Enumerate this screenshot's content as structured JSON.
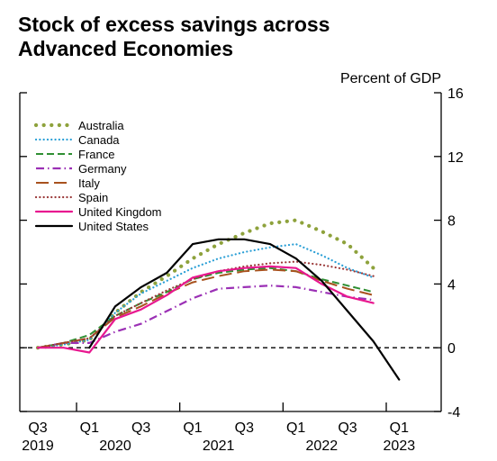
{
  "chart_data": {
    "type": "line",
    "title_lines": [
      "Stock of excess savings across",
      "Advanced Economies"
    ],
    "ylabel": "Percent of GDP",
    "xlabel": "",
    "ylim": [
      -4,
      16
    ],
    "yticks": [
      -4,
      0,
      4,
      8,
      12,
      16
    ],
    "xlim": [
      2019.5,
      2023.25
    ],
    "xticks": [
      {
        "x": 2019.5,
        "top": "Q3",
        "bottom": "2019"
      },
      {
        "x": 2020.0,
        "top": "Q1",
        "bottom": ""
      },
      {
        "x": 2020.5,
        "top": "Q3",
        "bottom": ""
      },
      {
        "x": 2021.0,
        "top": "Q1",
        "bottom": ""
      },
      {
        "x": 2021.5,
        "top": "Q3",
        "bottom": ""
      },
      {
        "x": 2022.0,
        "top": "Q1",
        "bottom": ""
      },
      {
        "x": 2022.5,
        "top": "Q3",
        "bottom": ""
      },
      {
        "x": 2023.0,
        "top": "Q1",
        "bottom": "2023"
      }
    ],
    "year_labels": [
      {
        "x": 2020.25,
        "label": "2020"
      },
      {
        "x": 2021.25,
        "label": "2021"
      },
      {
        "x": 2022.25,
        "label": "2022"
      }
    ],
    "year_separators": [
      2019.875,
      2020.875,
      2021.875,
      2022.875
    ],
    "zero_line": {
      "y": 0,
      "style": "dashed"
    },
    "legend_position": "top-left",
    "grid": false,
    "series": [
      {
        "name": "Australia",
        "color": "#8ea23c",
        "dash": "dotted-heavy",
        "x": [
          2019.5,
          2019.75,
          2020.0,
          2020.25,
          2020.5,
          2020.75,
          2021.0,
          2021.25,
          2021.5,
          2021.75,
          2022.0,
          2022.25,
          2022.5,
          2022.75
        ],
        "y": [
          0,
          0.2,
          0.5,
          2.2,
          3.5,
          4.5,
          5.6,
          6.5,
          7.2,
          7.8,
          8.0,
          7.3,
          6.5,
          5.0
        ]
      },
      {
        "name": "Canada",
        "color": "#2a9fd6",
        "dash": "dotted",
        "x": [
          2019.5,
          2019.75,
          2020.0,
          2020.25,
          2020.5,
          2020.75,
          2021.0,
          2021.25,
          2021.5,
          2021.75,
          2022.0,
          2022.25,
          2022.5,
          2022.75
        ],
        "y": [
          0,
          0.2,
          0.5,
          2.2,
          3.4,
          4.2,
          5.0,
          5.6,
          6.0,
          6.3,
          6.5,
          5.8,
          5.0,
          4.4
        ]
      },
      {
        "name": "France",
        "color": "#2f8f33",
        "dash": "dashed",
        "x": [
          2019.5,
          2019.75,
          2020.0,
          2020.25,
          2020.5,
          2020.75,
          2021.0,
          2021.25,
          2021.5,
          2021.75,
          2022.0,
          2022.25,
          2022.5,
          2022.75
        ],
        "y": [
          0,
          0.3,
          0.8,
          2.0,
          2.8,
          3.5,
          4.3,
          4.7,
          4.9,
          5.0,
          4.8,
          4.3,
          3.9,
          3.5
        ]
      },
      {
        "name": "Germany",
        "color": "#9b30b5",
        "dash": "dashdot",
        "x": [
          2019.5,
          2019.75,
          2020.0,
          2020.25,
          2020.5,
          2020.75,
          2021.0,
          2021.25,
          2021.5,
          2021.75,
          2022.0,
          2022.25,
          2022.5,
          2022.75
        ],
        "y": [
          0,
          0.3,
          0.3,
          1.0,
          1.5,
          2.3,
          3.1,
          3.7,
          3.8,
          3.9,
          3.8,
          3.5,
          3.2,
          3.0
        ]
      },
      {
        "name": "Italy",
        "color": "#a8521e",
        "dash": "longdash",
        "x": [
          2019.5,
          2019.75,
          2020.0,
          2020.25,
          2020.5,
          2020.75,
          2021.0,
          2021.25,
          2021.5,
          2021.75,
          2022.0,
          2022.25,
          2022.5,
          2022.75
        ],
        "y": [
          0,
          0.3,
          0.6,
          1.9,
          2.6,
          3.4,
          4.1,
          4.5,
          4.8,
          4.9,
          4.8,
          4.2,
          3.7,
          3.3
        ]
      },
      {
        "name": "Spain",
        "color": "#9a3838",
        "dash": "dotted",
        "x": [
          2019.5,
          2019.75,
          2020.0,
          2020.25,
          2020.5,
          2020.75,
          2021.0,
          2021.25,
          2021.5,
          2021.75,
          2022.0,
          2022.25,
          2022.5,
          2022.75
        ],
        "y": [
          0,
          0.3,
          0.6,
          2.0,
          2.8,
          3.6,
          4.3,
          4.8,
          5.1,
          5.3,
          5.4,
          5.2,
          4.9,
          4.5
        ]
      },
      {
        "name": "United Kingdom",
        "color": "#e8188f",
        "dash": "solid",
        "x": [
          2019.5,
          2019.75,
          2020.0,
          2020.25,
          2020.5,
          2020.75,
          2021.0,
          2021.25,
          2021.5,
          2021.75,
          2022.0,
          2022.25,
          2022.5,
          2022.75
        ],
        "y": [
          0,
          0,
          -0.3,
          1.8,
          2.4,
          3.3,
          4.4,
          4.8,
          5.0,
          5.1,
          5.0,
          4.0,
          3.2,
          2.8
        ]
      },
      {
        "name": "United States",
        "color": "#000000",
        "dash": "solid",
        "x": [
          2020.0,
          2020.25,
          2020.5,
          2020.75,
          2021.0,
          2021.25,
          2021.5,
          2021.75,
          2022.0,
          2022.25,
          2022.5,
          2022.75,
          2023.0
        ],
        "y": [
          0,
          2.6,
          3.8,
          4.7,
          6.5,
          6.8,
          6.8,
          6.5,
          5.6,
          4.2,
          2.3,
          0.4,
          -2.0
        ]
      }
    ]
  }
}
